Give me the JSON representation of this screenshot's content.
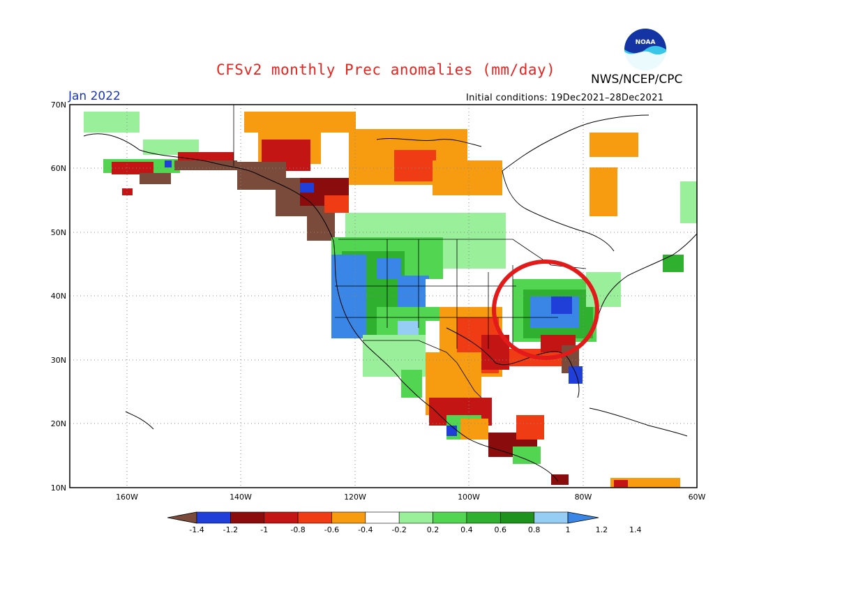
{
  "title": "CFSv2 monthly Prec anomalies (mm/day)",
  "agency": "NWS/NCEP/CPC",
  "logo_text": "NOAA",
  "month": "Jan 2022",
  "initial_conditions": "Initial conditions: 19Dec2021–28Dec2021",
  "lat_labels": [
    "70N",
    "60N",
    "50N",
    "40N",
    "30N",
    "20N",
    "10N"
  ],
  "lon_labels": [
    "160W",
    "140W",
    "120W",
    "100W",
    "80W",
    "60W"
  ],
  "colorbar": {
    "colors": [
      "#7a4a3a",
      "#1f3fd8",
      "#8b0c0c",
      "#c41515",
      "#f03c14",
      "#f79c10",
      "#ffffff",
      "#9af09a",
      "#52d652",
      "#2fb02f",
      "#1d921d",
      "#96cdf5",
      "#3a86e6"
    ],
    "tick_labels": [
      "-1.4",
      "-1.2",
      "-1",
      "-0.8",
      "-0.6",
      "-0.4",
      "-0.2",
      "0.2",
      "0.4",
      "0.6",
      "0.8",
      "1",
      "1.2",
      "1.4"
    ]
  },
  "annotation": {
    "type": "circle",
    "color": "#e21a1a"
  }
}
